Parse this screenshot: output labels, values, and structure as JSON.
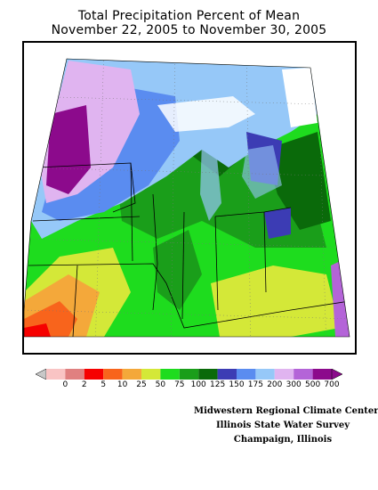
{
  "title": {
    "line1": "Total Precipitation Percent of Mean",
    "line2": "November 22, 2005 to November 30, 2005"
  },
  "legend": {
    "labels": [
      "0",
      "2",
      "5",
      "10",
      "25",
      "50",
      "75",
      "100",
      "125",
      "150",
      "175",
      "200",
      "300",
      "500",
      "700"
    ],
    "colors": [
      "#f9c4c4",
      "#e08080",
      "#f60000",
      "#f8641c",
      "#f4a83a",
      "#d4e838",
      "#1edc1e",
      "#1a9e1a",
      "#0a6a0a",
      "#3c3cb4",
      "#5a8cf0",
      "#96c8f8",
      "#e0b4f0",
      "#b464d8",
      "#8c0a8c"
    ]
  },
  "credits": {
    "line1": "Midwestern Regional Climate Center",
    "line2": "Illinois State Water Survey",
    "line3": "Champaign, Illinois"
  }
}
